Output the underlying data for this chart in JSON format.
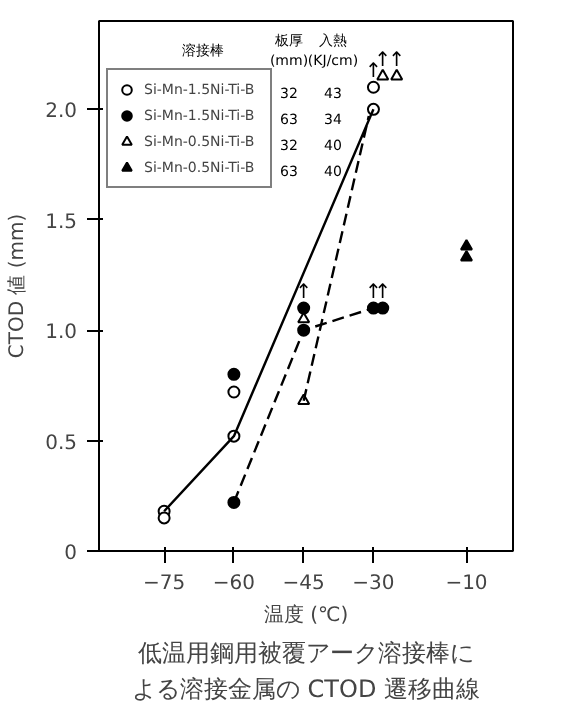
{
  "chart_data": {
    "type": "scatter",
    "title": "低温用鋼用被覆アーク溶接棒による溶接金属の CTOD 遷移曲線",
    "xlabel": "温度 (℃)",
    "ylabel": "CTOD 値 (mm)",
    "xlim": [
      -89,
      0
    ],
    "ylim": [
      0,
      2.4
    ],
    "xticks": [
      -75,
      -60,
      -45,
      -30,
      -10
    ],
    "yticks": [
      0,
      0.5,
      {
        "value": 1.0,
        "label": "1.0"
      },
      1.5,
      {
        "value": 2.0,
        "label": "2.0"
      }
    ],
    "grid": false,
    "legend": "top left",
    "series": [
      {
        "name": "Si-Mn-1.5Ni-Ti-B",
        "color": "#ffffff",
        "marker": "circle",
        "x": [
          -75,
          -75,
          -60,
          -60,
          -30,
          -30
        ],
        "values": [
          0.18,
          0.15,
          0.72,
          0.52,
          2.0,
          2.1
        ]
      },
      {
        "name": "Si-Mn-1.5Ni-Ti-B",
        "color": "#000000",
        "marker": "circle",
        "x": [
          -60,
          -60,
          -45,
          -45,
          -30,
          -28
        ],
        "values": [
          0.8,
          0.22,
          1.0,
          1.1,
          1.1,
          1.1
        ]
      },
      {
        "name": "Si-Mn-0.5Ni-Ti-B",
        "color": "#ffffff",
        "marker": "triangle",
        "x": [
          -45,
          -45,
          -28,
          -25
        ],
        "values": [
          0.68,
          1.05,
          2.15,
          2.15
        ]
      },
      {
        "name": "Si-Mn-0.5Ni-Ti-B",
        "color": "#000000",
        "marker": "triangle",
        "x": [
          -10,
          -10
        ],
        "values": [
          1.38,
          1.33
        ]
      },
      {
        "type": "line",
        "color": "#000000",
        "line_style": "solid",
        "x": [
          -75,
          -60,
          -30
        ],
        "values": [
          0.18,
          0.52,
          2.0
        ]
      },
      {
        "type": "line",
        "color": "#000000",
        "line_style": "dashed",
        "x": [
          -60,
          -45,
          -30,
          -28
        ],
        "values": [
          0.22,
          1.0,
          1.1,
          1.1
        ]
      },
      {
        "type": "line",
        "color": "#000000",
        "line_style": "dashed",
        "x": [
          -45,
          -31
        ],
        "values": [
          0.68,
          1.97
        ]
      }
    ],
    "annotations": [
      "溶接棒",
      "板厚",
      "(mm)",
      "入熱",
      "(KJ/cm)",
      "32",
      "43",
      "63",
      "34",
      "32",
      "40",
      "63",
      "40",
      {
        "text": "↑",
        "x": -30,
        "y": 2.1
      },
      {
        "text": "↑",
        "x": -28,
        "y": 2.15
      },
      {
        "text": "↑",
        "x": -25,
        "y": 2.15
      },
      {
        "text": "↑",
        "x": -45,
        "y": 1.1
      },
      {
        "text": "↑",
        "x": -30,
        "y": 1.1
      },
      {
        "text": "↑",
        "x": -28,
        "y": 1.1
      }
    ]
  }
}
